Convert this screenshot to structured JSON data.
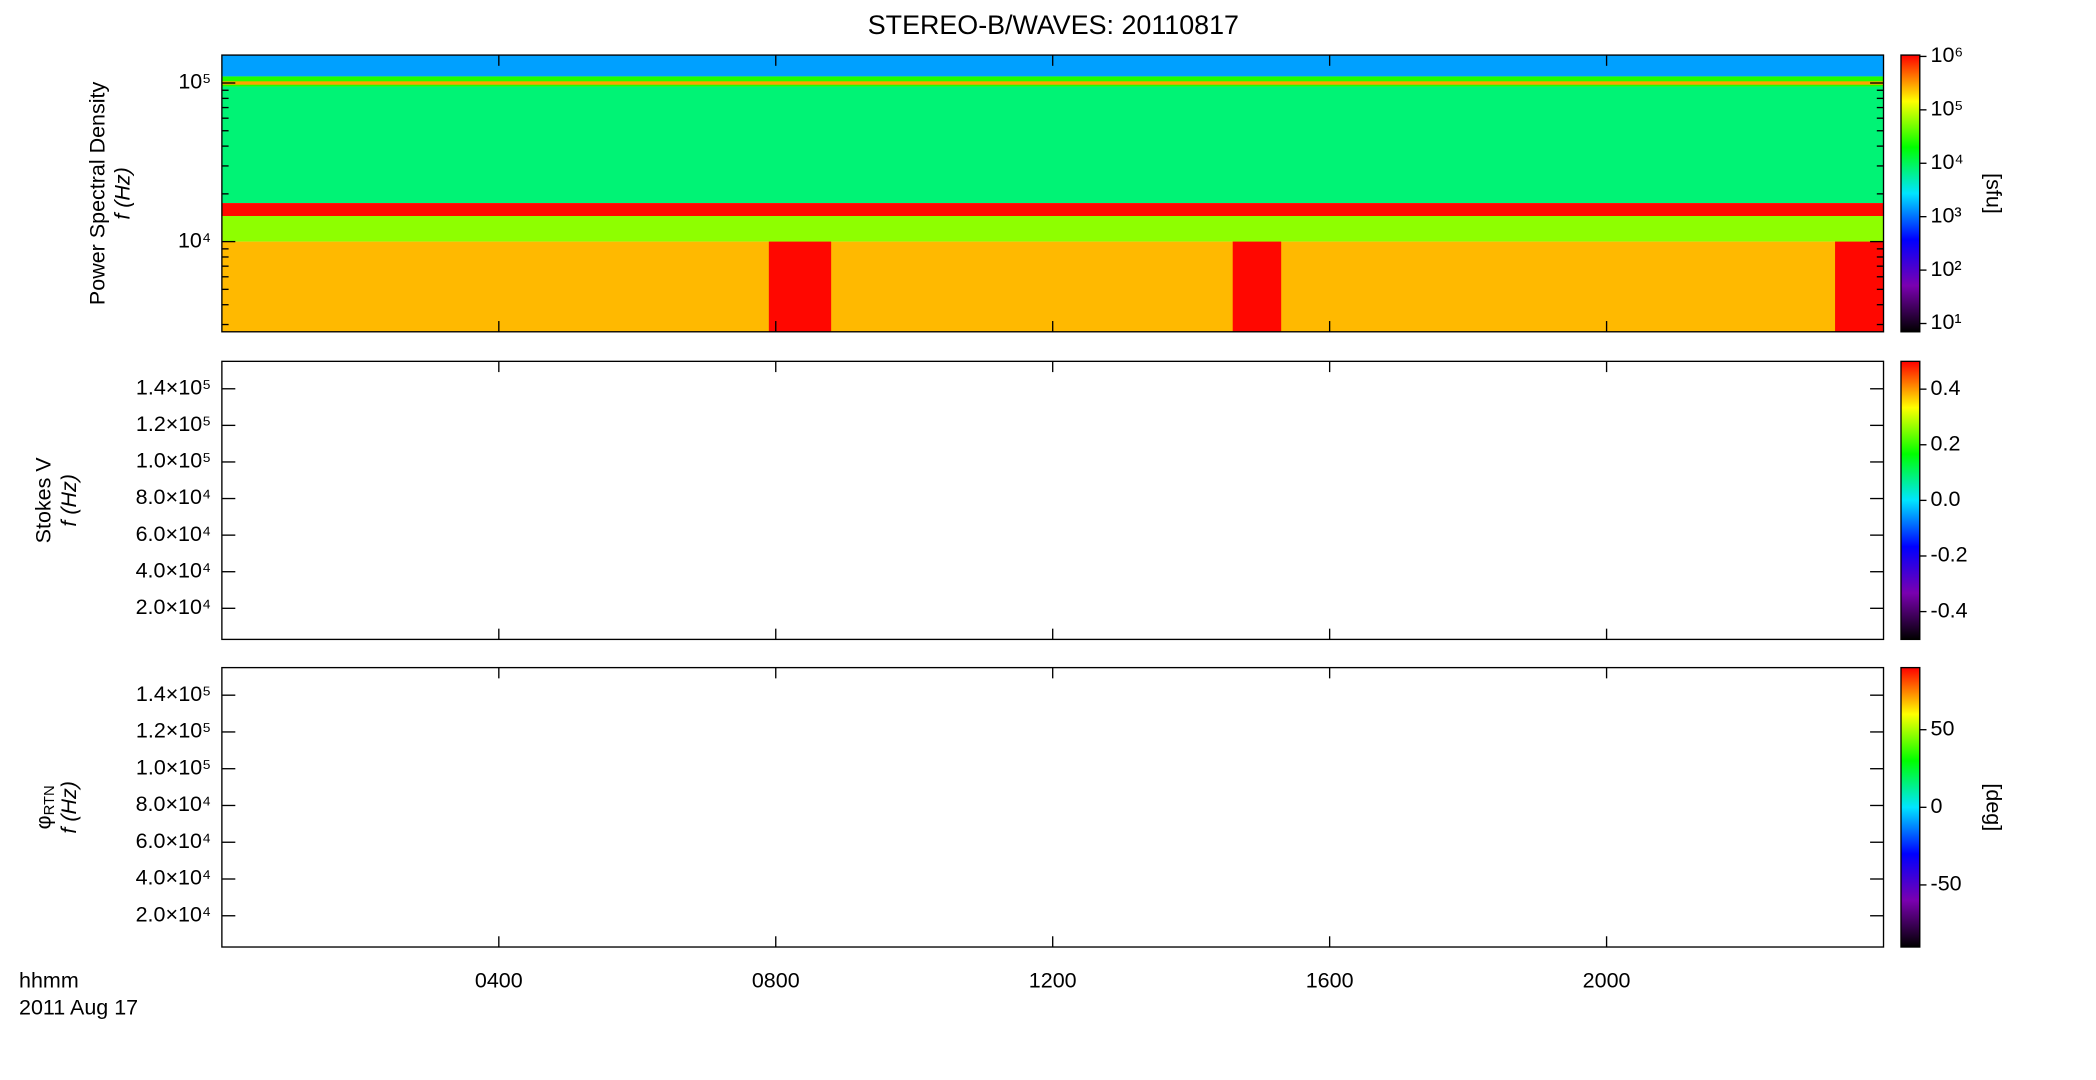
{
  "chart_data": [
    {
      "type": "spectrogram",
      "title": "STEREO-B/WAVES: 20110817",
      "ylabel": "Power Spectral Density",
      "ylabel2": "f (Hz)",
      "ylog": true,
      "ylim": [
        2700,
        150000
      ],
      "yticks": [
        {
          "value": 10000,
          "label": "10⁴"
        },
        {
          "value": 100000,
          "label": "10⁵"
        }
      ],
      "yminor": [
        3000,
        4000,
        5000,
        6000,
        7000,
        8000,
        9000,
        20000,
        30000,
        40000,
        50000,
        60000,
        70000,
        80000,
        90000
      ],
      "xlim": [
        0,
        24
      ],
      "xticks": [
        4,
        8,
        12,
        16,
        20
      ],
      "colormap": [
        "#000000",
        "#7a00b0",
        "#0000ff",
        "#00e5ff",
        "#00ff00",
        "#ffff00",
        "#ff0000"
      ],
      "colorbar": {
        "label": "[sfu]",
        "log": true,
        "lim": [
          7,
          1060000
        ],
        "ticks": [
          {
            "value": 10,
            "label": "10¹"
          },
          {
            "value": 100,
            "label": "10²"
          },
          {
            "value": 1000,
            "label": "10³"
          },
          {
            "value": 10000,
            "label": "10⁴"
          },
          {
            "value": 100000,
            "label": "10⁵"
          },
          {
            "value": 1000000,
            "label": "10⁶"
          }
        ]
      },
      "bands": [
        {
          "f_range": [
            110000,
            150000
          ],
          "level": 1500
        },
        {
          "f_range": [
            95000,
            110000
          ],
          "level": 25000
        },
        {
          "f_range": [
            97500,
            102500
          ],
          "level": 300000
        },
        {
          "f_range": [
            17500,
            95000
          ],
          "level": 8000
        },
        {
          "f_range": [
            14500,
            17500
          ],
          "level": 1000000
        },
        {
          "f_range": [
            10000,
            14500
          ],
          "level": 60000
        },
        {
          "f_range": [
            2700,
            10000
          ],
          "level": 250000
        }
      ],
      "bursts": [
        {
          "t_range": [
            7.9,
            8.8
          ],
          "f_range": [
            2700,
            10000
          ],
          "level": 1000000
        },
        {
          "t_range": [
            14.6,
            15.3
          ],
          "f_range": [
            2700,
            10000
          ],
          "level": 1000000
        },
        {
          "t_range": [
            23.3,
            24
          ],
          "f_range": [
            2700,
            10000
          ],
          "level": 1000000
        }
      ]
    },
    {
      "type": "spectrogram",
      "ylabel": "Stokes V",
      "ylabel2": "f (Hz)",
      "ylog": false,
      "ylim": [
        3000,
        155000
      ],
      "yticks": [
        {
          "value": 20000,
          "label": "2.0×10⁴"
        },
        {
          "value": 40000,
          "label": "4.0×10⁴"
        },
        {
          "value": 60000,
          "label": "6.0×10⁴"
        },
        {
          "value": 80000,
          "label": "8.0×10⁴"
        },
        {
          "value": 100000,
          "label": "1.0×10⁵"
        },
        {
          "value": 120000,
          "label": "1.2×10⁵"
        },
        {
          "value": 140000,
          "label": "1.4×10⁵"
        }
      ],
      "xlim": [
        0,
        24
      ],
      "xticks": [
        4,
        8,
        12,
        16,
        20
      ],
      "colorbar": {
        "log": false,
        "lim": [
          -0.5,
          0.5
        ],
        "ticks": [
          -0.4,
          -0.2,
          {
            "value": 0,
            "label": "0.0"
          },
          0.2,
          0.4
        ]
      }
    },
    {
      "type": "spectrogram",
      "ylabel": "φ",
      "ylabel_sub": "RTN",
      "ylabel2": "f (Hz)",
      "ylog": false,
      "ylim": [
        3000,
        155000
      ],
      "yticks": [
        {
          "value": 20000,
          "label": "2.0×10⁴"
        },
        {
          "value": 40000,
          "label": "4.0×10⁴"
        },
        {
          "value": 60000,
          "label": "6.0×10⁴"
        },
        {
          "value": 80000,
          "label": "8.0×10⁴"
        },
        {
          "value": 100000,
          "label": "1.0×10⁵"
        },
        {
          "value": 120000,
          "label": "1.2×10⁵"
        },
        {
          "value": 140000,
          "label": "1.4×10⁵"
        }
      ],
      "xlim": [
        0,
        24
      ],
      "xticks": [
        {
          "value": 4,
          "label": "0400"
        },
        {
          "value": 8,
          "label": "0800"
        },
        {
          "value": 12,
          "label": "1200"
        },
        {
          "value": 16,
          "label": "1600"
        },
        {
          "value": 20,
          "label": "2000"
        }
      ],
      "xlabel": "hhmm",
      "date": "2011 Aug 17",
      "colorbar": {
        "label": "[deg]",
        "log": false,
        "lim": [
          -90,
          90
        ],
        "ticks": [
          -50,
          0,
          50
        ]
      }
    }
  ]
}
